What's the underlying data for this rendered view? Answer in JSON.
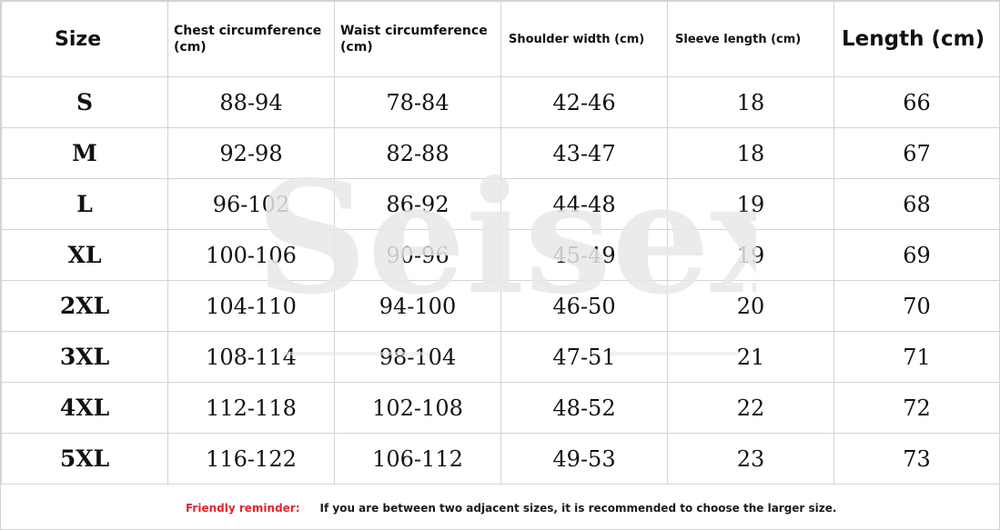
{
  "table": {
    "headers": [
      "Size",
      "Chest circumference (cm)",
      "Waist circumference (cm)",
      "Shoulder width (cm)",
      "Sleeve length (cm)",
      "Length (cm)"
    ],
    "rows": [
      [
        "S",
        "88-94",
        "78-84",
        "42-46",
        "18",
        "66"
      ],
      [
        "M",
        "92-98",
        "82-88",
        "43-47",
        "18",
        "67"
      ],
      [
        "L",
        "96-102",
        "86-92",
        "44-48",
        "19",
        "68"
      ],
      [
        "XL",
        "100-106",
        "90-96",
        "45-49",
        "19",
        "69"
      ],
      [
        "2XL",
        "104-110",
        "94-100",
        "46-50",
        "20",
        "70"
      ],
      [
        "3XL",
        "108-114",
        "98-104",
        "47-51",
        "21",
        "71"
      ],
      [
        "4XL",
        "112-118",
        "102-108",
        "48-52",
        "22",
        "72"
      ],
      [
        "5XL",
        "116-122",
        "106-112",
        "49-53",
        "23",
        "73"
      ]
    ]
  },
  "footer": {
    "label": "Friendly reminder:",
    "text": "If you are between two adjacent sizes, it is recommended to choose the larger size.",
    "label_color": "#e0262c"
  },
  "watermark": {
    "text": "Seisexi",
    "color": "#e8e8e8"
  }
}
